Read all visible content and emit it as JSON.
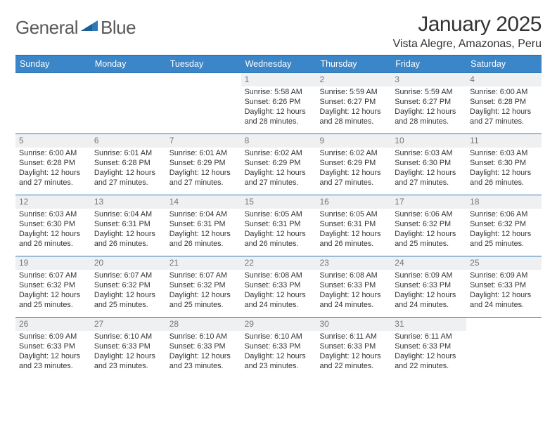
{
  "brand": {
    "word1": "General",
    "word2": "Blue",
    "accent_color": "#2f78b7",
    "text_color": "#5a5a5a"
  },
  "title": {
    "month": "January 2025",
    "location": "Vista Alegre, Amazonas, Peru",
    "title_fontsize": 30,
    "location_fontsize": 16
  },
  "calendar": {
    "header_bg": "#3a86c8",
    "header_fg": "#ffffff",
    "rule_color": "#2f78b7",
    "daynum_bg": "#eef0f1",
    "daynum_fg": "#777777",
    "body_fontsize": 10.8,
    "days_of_week": [
      "Sunday",
      "Monday",
      "Tuesday",
      "Wednesday",
      "Thursday",
      "Friday",
      "Saturday"
    ],
    "weeks": [
      [
        {
          "num": "",
          "lines": []
        },
        {
          "num": "",
          "lines": []
        },
        {
          "num": "",
          "lines": []
        },
        {
          "num": "1",
          "lines": [
            "Sunrise: 5:58 AM",
            "Sunset: 6:26 PM",
            "Daylight: 12 hours and 28 minutes."
          ]
        },
        {
          "num": "2",
          "lines": [
            "Sunrise: 5:59 AM",
            "Sunset: 6:27 PM",
            "Daylight: 12 hours and 28 minutes."
          ]
        },
        {
          "num": "3",
          "lines": [
            "Sunrise: 5:59 AM",
            "Sunset: 6:27 PM",
            "Daylight: 12 hours and 28 minutes."
          ]
        },
        {
          "num": "4",
          "lines": [
            "Sunrise: 6:00 AM",
            "Sunset: 6:28 PM",
            "Daylight: 12 hours and 27 minutes."
          ]
        }
      ],
      [
        {
          "num": "5",
          "lines": [
            "Sunrise: 6:00 AM",
            "Sunset: 6:28 PM",
            "Daylight: 12 hours and 27 minutes."
          ]
        },
        {
          "num": "6",
          "lines": [
            "Sunrise: 6:01 AM",
            "Sunset: 6:28 PM",
            "Daylight: 12 hours and 27 minutes."
          ]
        },
        {
          "num": "7",
          "lines": [
            "Sunrise: 6:01 AM",
            "Sunset: 6:29 PM",
            "Daylight: 12 hours and 27 minutes."
          ]
        },
        {
          "num": "8",
          "lines": [
            "Sunrise: 6:02 AM",
            "Sunset: 6:29 PM",
            "Daylight: 12 hours and 27 minutes."
          ]
        },
        {
          "num": "9",
          "lines": [
            "Sunrise: 6:02 AM",
            "Sunset: 6:29 PM",
            "Daylight: 12 hours and 27 minutes."
          ]
        },
        {
          "num": "10",
          "lines": [
            "Sunrise: 6:03 AM",
            "Sunset: 6:30 PM",
            "Daylight: 12 hours and 27 minutes."
          ]
        },
        {
          "num": "11",
          "lines": [
            "Sunrise: 6:03 AM",
            "Sunset: 6:30 PM",
            "Daylight: 12 hours and 26 minutes."
          ]
        }
      ],
      [
        {
          "num": "12",
          "lines": [
            "Sunrise: 6:03 AM",
            "Sunset: 6:30 PM",
            "Daylight: 12 hours and 26 minutes."
          ]
        },
        {
          "num": "13",
          "lines": [
            "Sunrise: 6:04 AM",
            "Sunset: 6:31 PM",
            "Daylight: 12 hours and 26 minutes."
          ]
        },
        {
          "num": "14",
          "lines": [
            "Sunrise: 6:04 AM",
            "Sunset: 6:31 PM",
            "Daylight: 12 hours and 26 minutes."
          ]
        },
        {
          "num": "15",
          "lines": [
            "Sunrise: 6:05 AM",
            "Sunset: 6:31 PM",
            "Daylight: 12 hours and 26 minutes."
          ]
        },
        {
          "num": "16",
          "lines": [
            "Sunrise: 6:05 AM",
            "Sunset: 6:31 PM",
            "Daylight: 12 hours and 26 minutes."
          ]
        },
        {
          "num": "17",
          "lines": [
            "Sunrise: 6:06 AM",
            "Sunset: 6:32 PM",
            "Daylight: 12 hours and 25 minutes."
          ]
        },
        {
          "num": "18",
          "lines": [
            "Sunrise: 6:06 AM",
            "Sunset: 6:32 PM",
            "Daylight: 12 hours and 25 minutes."
          ]
        }
      ],
      [
        {
          "num": "19",
          "lines": [
            "Sunrise: 6:07 AM",
            "Sunset: 6:32 PM",
            "Daylight: 12 hours and 25 minutes."
          ]
        },
        {
          "num": "20",
          "lines": [
            "Sunrise: 6:07 AM",
            "Sunset: 6:32 PM",
            "Daylight: 12 hours and 25 minutes."
          ]
        },
        {
          "num": "21",
          "lines": [
            "Sunrise: 6:07 AM",
            "Sunset: 6:32 PM",
            "Daylight: 12 hours and 25 minutes."
          ]
        },
        {
          "num": "22",
          "lines": [
            "Sunrise: 6:08 AM",
            "Sunset: 6:33 PM",
            "Daylight: 12 hours and 24 minutes."
          ]
        },
        {
          "num": "23",
          "lines": [
            "Sunrise: 6:08 AM",
            "Sunset: 6:33 PM",
            "Daylight: 12 hours and 24 minutes."
          ]
        },
        {
          "num": "24",
          "lines": [
            "Sunrise: 6:09 AM",
            "Sunset: 6:33 PM",
            "Daylight: 12 hours and 24 minutes."
          ]
        },
        {
          "num": "25",
          "lines": [
            "Sunrise: 6:09 AM",
            "Sunset: 6:33 PM",
            "Daylight: 12 hours and 24 minutes."
          ]
        }
      ],
      [
        {
          "num": "26",
          "lines": [
            "Sunrise: 6:09 AM",
            "Sunset: 6:33 PM",
            "Daylight: 12 hours and 23 minutes."
          ]
        },
        {
          "num": "27",
          "lines": [
            "Sunrise: 6:10 AM",
            "Sunset: 6:33 PM",
            "Daylight: 12 hours and 23 minutes."
          ]
        },
        {
          "num": "28",
          "lines": [
            "Sunrise: 6:10 AM",
            "Sunset: 6:33 PM",
            "Daylight: 12 hours and 23 minutes."
          ]
        },
        {
          "num": "29",
          "lines": [
            "Sunrise: 6:10 AM",
            "Sunset: 6:33 PM",
            "Daylight: 12 hours and 23 minutes."
          ]
        },
        {
          "num": "30",
          "lines": [
            "Sunrise: 6:11 AM",
            "Sunset: 6:33 PM",
            "Daylight: 12 hours and 22 minutes."
          ]
        },
        {
          "num": "31",
          "lines": [
            "Sunrise: 6:11 AM",
            "Sunset: 6:33 PM",
            "Daylight: 12 hours and 22 minutes."
          ]
        },
        {
          "num": "",
          "lines": []
        }
      ]
    ]
  }
}
